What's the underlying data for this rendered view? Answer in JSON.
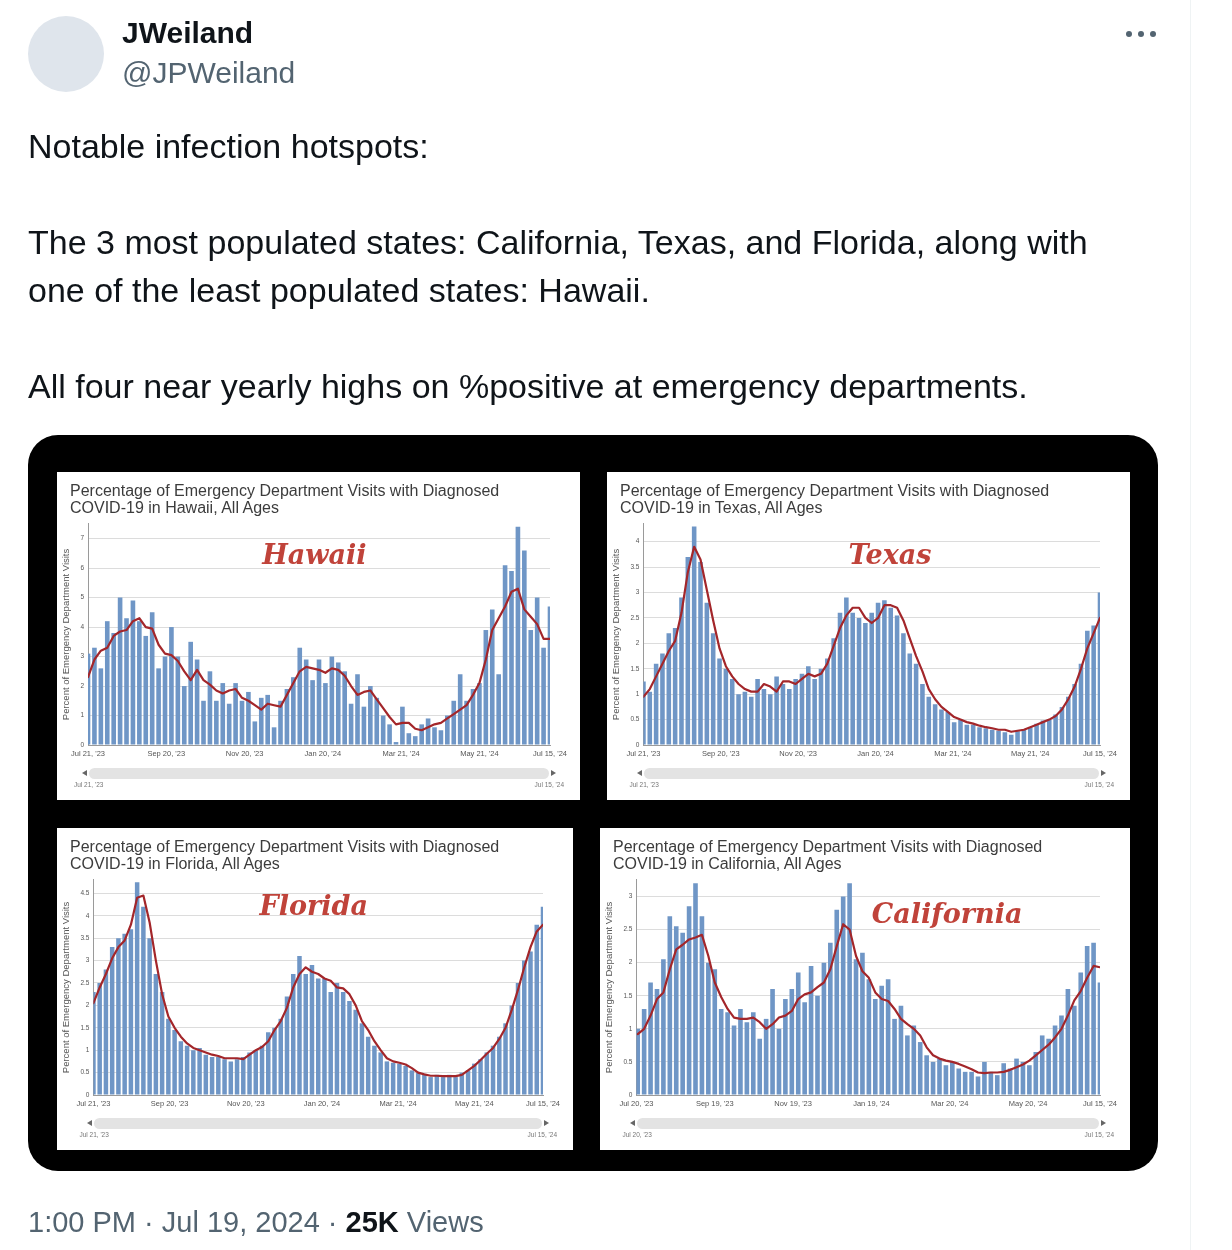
{
  "chart_data": [
    {
      "type": "other",
      "title": "JWeiland",
      "subtitle": "@JPWeiland",
      "annotations": [
        "Notable infection hotspots:",
        "The 3 most populated states: California, Texas, and Florida, along with one of the least populated states: Hawaii.",
        "All four near yearly highs on %positive at emergency departments."
      ]
    },
    {
      "type": "bar",
      "title": "Percentage of Emergency Department Visits with Diagnosed COVID-19 in Hawaii, All Ages",
      "ylabel": "Percent of Emergency Department Visits",
      "annotations": [
        "Hawaii",
        "Jul 21, '23",
        "Jul 15, '24"
      ],
      "x": [
        "2023-07-21",
        "2023-07-26",
        "2023-07-31",
        "2023-08-05",
        "2023-08-10",
        "2023-08-15",
        "2023-08-20",
        "2023-08-25",
        "2023-08-30",
        "2023-09-04",
        "2023-09-09",
        "2023-09-14",
        "2023-09-19",
        "2023-09-24",
        "2023-09-29",
        "2023-10-04",
        "2023-10-09",
        "2023-10-14",
        "2023-10-19",
        "2023-10-24",
        "2023-10-29",
        "2023-11-03",
        "2023-11-08",
        "2023-11-13",
        "2023-11-18",
        "2023-11-23",
        "2023-11-28",
        "2023-12-03",
        "2023-12-08",
        "2023-12-13",
        "2023-12-18",
        "2023-12-23",
        "2023-12-28",
        "2024-01-02",
        "2024-01-07",
        "2024-01-12",
        "2024-01-17",
        "2024-01-22",
        "2024-01-27",
        "2024-02-01",
        "2024-02-06",
        "2024-02-11",
        "2024-02-16",
        "2024-02-21",
        "2024-02-26",
        "2024-03-02",
        "2024-03-07",
        "2024-03-12",
        "2024-03-17",
        "2024-03-22",
        "2024-03-27",
        "2024-04-01",
        "2024-04-06",
        "2024-04-11",
        "2024-04-16",
        "2024-04-21",
        "2024-04-26",
        "2024-05-01",
        "2024-05-06",
        "2024-05-11",
        "2024-05-16",
        "2024-05-21",
        "2024-05-26",
        "2024-05-31",
        "2024-06-05",
        "2024-06-10",
        "2024-06-15",
        "2024-06-20",
        "2024-06-25",
        "2024-06-30",
        "2024-07-05",
        "2024-07-10",
        "2024-07-15"
      ],
      "series": [
        {
          "type": "bar",
          "color": "#6f96c6",
          "values": [
            3.1,
            3.3,
            2.6,
            4.2,
            3.8,
            5.0,
            4.3,
            4.9,
            4.2,
            3.7,
            4.5,
            2.6,
            3.0,
            4.0,
            3.0,
            2.0,
            3.5,
            2.9,
            1.5,
            2.5,
            1.5,
            2.1,
            1.4,
            2.1,
            1.5,
            1.8,
            0.8,
            1.6,
            1.7,
            0.6,
            1.5,
            1.9,
            2.3,
            3.3,
            2.9,
            2.2,
            2.9,
            2.1,
            3.0,
            2.8,
            2.5,
            1.4,
            2.4,
            1.3,
            2.0,
            1.6,
            1.0,
            0.7,
            0.1,
            1.3,
            0.4,
            0.3,
            0.7,
            0.9,
            0.6,
            0.5,
            1.0,
            1.5,
            2.4,
            1.5,
            1.9,
            2.1,
            3.9,
            4.6,
            2.4,
            6.1,
            5.9,
            7.4,
            6.6,
            3.9,
            5.0,
            3.3,
            4.7
          ]
        },
        {
          "type": "line",
          "color": "#a3262a",
          "values": [
            2.3,
            2.9,
            3.2,
            3.3,
            3.7,
            3.85,
            3.9,
            4.2,
            4.3,
            4.0,
            3.95,
            3.4,
            3.1,
            3.05,
            2.85,
            2.5,
            2.2,
            2.55,
            2.2,
            2.05,
            1.85,
            1.75,
            1.85,
            1.9,
            1.6,
            1.5,
            1.35,
            1.2,
            1.4,
            1.35,
            1.3,
            1.7,
            2.1,
            2.5,
            2.65,
            2.6,
            2.55,
            2.45,
            2.6,
            2.55,
            2.35,
            2.0,
            1.7,
            1.8,
            1.85,
            1.55,
            1.25,
            0.95,
            0.7,
            0.75,
            0.75,
            0.55,
            0.5,
            0.6,
            0.7,
            0.75,
            0.9,
            1.05,
            1.2,
            1.35,
            1.7,
            2.1,
            2.9,
            3.9,
            4.3,
            4.7,
            5.2,
            5.3,
            4.6,
            4.35,
            4.1,
            3.6,
            3.6
          ]
        }
      ],
      "xlim": [
        "2023-07-21",
        "2024-07-15"
      ],
      "xticks": [
        {
          "value": "2023-07-21",
          "label": "Jul 21, '23"
        },
        {
          "value": "2023-09-20",
          "label": "Sep 20, '23"
        },
        {
          "value": "2023-11-20",
          "label": "Nov 20, '23"
        },
        {
          "value": "2024-01-20",
          "label": "Jan 20, '24"
        },
        {
          "value": "2024-03-21",
          "label": "Mar 21, '24"
        },
        {
          "value": "2024-05-21",
          "label": "May 21, '24"
        },
        {
          "value": "2024-07-15",
          "label": "Jul 15, '24"
        }
      ],
      "ylim": [
        0,
        7.5
      ],
      "yticks": [
        0,
        1,
        2,
        3,
        4,
        5,
        6,
        7
      ],
      "grid": "y",
      "marker": "none",
      "line_style": "solid"
    },
    {
      "type": "bar",
      "title": "Percentage of Emergency Department Visits with Diagnosed COVID-19 in Texas, All Ages",
      "ylabel": "Percent of Emergency Department Visits",
      "annotations": [
        "Texas",
        "Jul 21, '23",
        "Jul 15, '24"
      ],
      "x": [
        "2023-07-21",
        "2023-07-26",
        "2023-07-31",
        "2023-08-05",
        "2023-08-10",
        "2023-08-15",
        "2023-08-20",
        "2023-08-25",
        "2023-08-30",
        "2023-09-04",
        "2023-09-09",
        "2023-09-14",
        "2023-09-19",
        "2023-09-24",
        "2023-09-29",
        "2023-10-04",
        "2023-10-09",
        "2023-10-14",
        "2023-10-19",
        "2023-10-24",
        "2023-10-29",
        "2023-11-03",
        "2023-11-08",
        "2023-11-13",
        "2023-11-18",
        "2023-11-23",
        "2023-11-28",
        "2023-12-03",
        "2023-12-08",
        "2023-12-13",
        "2023-12-18",
        "2023-12-23",
        "2023-12-28",
        "2024-01-02",
        "2024-01-07",
        "2024-01-12",
        "2024-01-17",
        "2024-01-22",
        "2024-01-27",
        "2024-02-01",
        "2024-02-06",
        "2024-02-11",
        "2024-02-16",
        "2024-02-21",
        "2024-02-26",
        "2024-03-02",
        "2024-03-07",
        "2024-03-12",
        "2024-03-17",
        "2024-03-22",
        "2024-03-27",
        "2024-04-01",
        "2024-04-06",
        "2024-04-11",
        "2024-04-16",
        "2024-04-21",
        "2024-04-26",
        "2024-05-01",
        "2024-05-06",
        "2024-05-11",
        "2024-05-16",
        "2024-05-21",
        "2024-05-26",
        "2024-05-31",
        "2024-06-05",
        "2024-06-10",
        "2024-06-15",
        "2024-06-20",
        "2024-06-25",
        "2024-06-30",
        "2024-07-05",
        "2024-07-10",
        "2024-07-15"
      ],
      "series": [
        {
          "type": "bar",
          "color": "#6f96c6",
          "values": [
            1.25,
            1.05,
            1.6,
            1.8,
            2.2,
            2.3,
            2.9,
            3.7,
            4.3,
            3.6,
            2.8,
            2.2,
            1.7,
            1.5,
            1.3,
            1.0,
            1.05,
            0.95,
            1.3,
            1.1,
            1.0,
            1.35,
            1.2,
            1.1,
            1.3,
            1.4,
            1.55,
            1.3,
            1.5,
            1.7,
            2.1,
            2.6,
            2.9,
            2.6,
            2.5,
            2.4,
            2.6,
            2.8,
            2.85,
            2.7,
            2.55,
            2.2,
            1.8,
            1.6,
            1.2,
            0.95,
            0.8,
            0.7,
            0.65,
            0.45,
            0.5,
            0.4,
            0.4,
            0.35,
            0.33,
            0.3,
            0.28,
            0.25,
            0.2,
            0.27,
            0.3,
            0.35,
            0.42,
            0.48,
            0.5,
            0.6,
            0.75,
            0.95,
            1.2,
            1.6,
            2.25,
            2.35,
            3.0
          ]
        },
        {
          "type": "line",
          "color": "#a3262a",
          "values": [
            0.95,
            1.1,
            1.35,
            1.6,
            1.85,
            2.05,
            2.6,
            3.4,
            3.9,
            3.65,
            3.05,
            2.45,
            1.9,
            1.55,
            1.35,
            1.2,
            1.1,
            1.05,
            1.05,
            1.2,
            1.15,
            1.05,
            1.25,
            1.25,
            1.2,
            1.3,
            1.4,
            1.35,
            1.4,
            1.6,
            1.95,
            2.3,
            2.55,
            2.7,
            2.7,
            2.5,
            2.4,
            2.5,
            2.75,
            2.75,
            2.7,
            2.45,
            2.1,
            1.75,
            1.45,
            1.1,
            0.9,
            0.75,
            0.65,
            0.55,
            0.5,
            0.45,
            0.42,
            0.38,
            0.35,
            0.33,
            0.3,
            0.3,
            0.26,
            0.28,
            0.3,
            0.35,
            0.4,
            0.45,
            0.5,
            0.57,
            0.7,
            0.9,
            1.15,
            1.5,
            1.9,
            2.2,
            2.5
          ]
        }
      ],
      "xlim": [
        "2023-07-21",
        "2024-07-15"
      ],
      "xticks": [
        {
          "value": "2023-07-21",
          "label": "Jul 21, '23"
        },
        {
          "value": "2023-09-20",
          "label": "Sep 20, '23"
        },
        {
          "value": "2023-11-20",
          "label": "Nov 20, '23"
        },
        {
          "value": "2024-01-20",
          "label": "Jan 20, '24"
        },
        {
          "value": "2024-03-21",
          "label": "Mar 21, '24"
        },
        {
          "value": "2024-05-21",
          "label": "May 21, '24"
        },
        {
          "value": "2024-07-15",
          "label": "Jul 15, '24"
        }
      ],
      "ylim": [
        0,
        4.35
      ],
      "yticks": [
        0,
        0.5,
        1,
        1.5,
        2,
        2.5,
        3,
        3.5,
        4
      ],
      "grid": "y",
      "marker": "none",
      "line_style": "solid"
    },
    {
      "type": "bar",
      "title": "Percentage of Emergency Department Visits with Diagnosed COVID-19 in Florida, All Ages",
      "ylabel": "Percent of Emergency Department Visits",
      "annotations": [
        "Florida",
        "Jul 21, '23",
        "Jul 15, '24"
      ],
      "x": [
        "2023-07-21",
        "2023-07-26",
        "2023-07-31",
        "2023-08-05",
        "2023-08-10",
        "2023-08-15",
        "2023-08-20",
        "2023-08-25",
        "2023-08-30",
        "2023-09-04",
        "2023-09-09",
        "2023-09-14",
        "2023-09-19",
        "2023-09-24",
        "2023-09-29",
        "2023-10-04",
        "2023-10-09",
        "2023-10-14",
        "2023-10-19",
        "2023-10-24",
        "2023-10-29",
        "2023-11-03",
        "2023-11-08",
        "2023-11-13",
        "2023-11-18",
        "2023-11-23",
        "2023-11-28",
        "2023-12-03",
        "2023-12-08",
        "2023-12-13",
        "2023-12-18",
        "2023-12-23",
        "2023-12-28",
        "2024-01-02",
        "2024-01-07",
        "2024-01-12",
        "2024-01-17",
        "2024-01-22",
        "2024-01-27",
        "2024-02-01",
        "2024-02-06",
        "2024-02-11",
        "2024-02-16",
        "2024-02-21",
        "2024-02-26",
        "2024-03-02",
        "2024-03-07",
        "2024-03-12",
        "2024-03-17",
        "2024-03-22",
        "2024-03-27",
        "2024-04-01",
        "2024-04-06",
        "2024-04-11",
        "2024-04-16",
        "2024-04-21",
        "2024-04-26",
        "2024-05-01",
        "2024-05-06",
        "2024-05-11",
        "2024-05-16",
        "2024-05-21",
        "2024-05-26",
        "2024-05-31",
        "2024-06-05",
        "2024-06-10",
        "2024-06-15",
        "2024-06-20",
        "2024-06-25",
        "2024-06-30",
        "2024-07-05",
        "2024-07-10",
        "2024-07-15"
      ],
      "series": [
        {
          "type": "bar",
          "color": "#6f96c6",
          "values": [
            2.3,
            2.5,
            2.8,
            3.3,
            3.5,
            3.6,
            3.7,
            4.75,
            4.2,
            3.5,
            2.7,
            2.3,
            1.7,
            1.45,
            1.2,
            1.1,
            1.0,
            1.05,
            0.9,
            0.85,
            0.85,
            0.8,
            0.75,
            0.8,
            0.85,
            0.95,
            1.0,
            1.1,
            1.4,
            1.5,
            1.7,
            2.2,
            2.7,
            3.1,
            2.7,
            2.9,
            2.6,
            2.6,
            2.3,
            2.5,
            2.3,
            2.1,
            1.9,
            1.6,
            1.3,
            1.1,
            0.95,
            0.75,
            0.72,
            0.7,
            0.65,
            0.55,
            0.5,
            0.45,
            0.4,
            0.45,
            0.4,
            0.45,
            0.4,
            0.5,
            0.55,
            0.7,
            0.8,
            0.95,
            1.1,
            1.3,
            1.6,
            2.0,
            2.5,
            3.0,
            3.2,
            3.8,
            4.2
          ]
        },
        {
          "type": "line",
          "color": "#a3262a",
          "values": [
            2.05,
            2.4,
            2.7,
            3.05,
            3.3,
            3.45,
            3.8,
            4.4,
            4.45,
            3.85,
            3.0,
            2.25,
            1.75,
            1.5,
            1.3,
            1.15,
            1.05,
            1.0,
            0.95,
            0.9,
            0.87,
            0.82,
            0.82,
            0.82,
            0.8,
            0.9,
            1.0,
            1.07,
            1.2,
            1.45,
            1.65,
            1.95,
            2.4,
            2.7,
            2.85,
            2.75,
            2.7,
            2.6,
            2.55,
            2.4,
            2.38,
            2.25,
            2.0,
            1.65,
            1.45,
            1.2,
            1.0,
            0.82,
            0.75,
            0.72,
            0.68,
            0.6,
            0.5,
            0.46,
            0.43,
            0.43,
            0.42,
            0.42,
            0.42,
            0.45,
            0.55,
            0.65,
            0.78,
            0.92,
            1.05,
            1.25,
            1.5,
            1.9,
            2.35,
            2.85,
            3.3,
            3.65,
            3.8
          ]
        }
      ],
      "xlim": [
        "2023-07-21",
        "2024-07-15"
      ],
      "xticks": [
        {
          "value": "2023-07-21",
          "label": "Jul 21, '23"
        },
        {
          "value": "2023-09-20",
          "label": "Sep 20, '23"
        },
        {
          "value": "2023-11-20",
          "label": "Nov 20, '23"
        },
        {
          "value": "2024-01-20",
          "label": "Jan 20, '24"
        },
        {
          "value": "2024-03-21",
          "label": "Mar 21, '24"
        },
        {
          "value": "2024-05-21",
          "label": "May 21, '24"
        },
        {
          "value": "2024-07-15",
          "label": "Jul 15, '24"
        }
      ],
      "ylim": [
        0,
        4.8
      ],
      "yticks": [
        0,
        0.5,
        1,
        1.5,
        2,
        2.5,
        3,
        3.5,
        4,
        4.5
      ],
      "grid": "y",
      "marker": "none",
      "line_style": "solid"
    },
    {
      "type": "bar",
      "title": "Percentage of Emergency Department Visits with Diagnosed COVID-19 in California, All Ages",
      "ylabel": "Percent of Emergency Department Visits",
      "annotations": [
        "California",
        "Jul 20, '23",
        "Jul 15, '24"
      ],
      "x": [
        "2023-07-21",
        "2023-07-26",
        "2023-07-31",
        "2023-08-05",
        "2023-08-10",
        "2023-08-15",
        "2023-08-20",
        "2023-08-25",
        "2023-08-30",
        "2023-09-04",
        "2023-09-09",
        "2023-09-14",
        "2023-09-19",
        "2023-09-24",
        "2023-09-29",
        "2023-10-04",
        "2023-10-09",
        "2023-10-14",
        "2023-10-19",
        "2023-10-24",
        "2023-10-29",
        "2023-11-03",
        "2023-11-08",
        "2023-11-13",
        "2023-11-18",
        "2023-11-23",
        "2023-11-28",
        "2023-12-03",
        "2023-12-08",
        "2023-12-13",
        "2023-12-18",
        "2023-12-23",
        "2023-12-28",
        "2024-01-02",
        "2024-01-07",
        "2024-01-12",
        "2024-01-17",
        "2024-01-22",
        "2024-01-27",
        "2024-02-01",
        "2024-02-06",
        "2024-02-11",
        "2024-02-16",
        "2024-02-21",
        "2024-02-26",
        "2024-03-02",
        "2024-03-07",
        "2024-03-12",
        "2024-03-17",
        "2024-03-22",
        "2024-03-27",
        "2024-04-01",
        "2024-04-06",
        "2024-04-11",
        "2024-04-16",
        "2024-04-21",
        "2024-04-26",
        "2024-05-01",
        "2024-05-06",
        "2024-05-11",
        "2024-05-16",
        "2024-05-21",
        "2024-05-26",
        "2024-05-31",
        "2024-06-05",
        "2024-06-10",
        "2024-06-15",
        "2024-06-20",
        "2024-06-25",
        "2024-06-30",
        "2024-07-05",
        "2024-07-10",
        "2024-07-15"
      ],
      "series": [
        {
          "type": "bar",
          "color": "#6f96c6",
          "values": [
            1.0,
            1.3,
            1.7,
            1.6,
            2.05,
            2.7,
            2.55,
            2.45,
            2.85,
            3.2,
            2.7,
            2.0,
            1.9,
            1.3,
            1.25,
            1.05,
            1.3,
            1.1,
            1.25,
            0.85,
            1.15,
            1.6,
            1.0,
            1.45,
            1.6,
            1.85,
            1.4,
            1.95,
            1.5,
            2.0,
            2.3,
            2.8,
            3.0,
            3.2,
            2.05,
            2.15,
            1.75,
            1.45,
            1.65,
            1.75,
            1.15,
            1.35,
            0.9,
            1.05,
            0.8,
            0.6,
            0.5,
            0.55,
            0.45,
            0.5,
            0.4,
            0.35,
            0.35,
            0.28,
            0.5,
            0.35,
            0.3,
            0.48,
            0.4,
            0.55,
            0.5,
            0.45,
            0.65,
            0.9,
            0.85,
            1.05,
            1.2,
            1.6,
            1.35,
            1.85,
            2.25,
            2.3,
            1.7
          ]
        },
        {
          "type": "line",
          "color": "#a3262a",
          "values": [
            0.92,
            1.0,
            1.2,
            1.45,
            1.55,
            1.9,
            2.2,
            2.27,
            2.35,
            2.38,
            2.42,
            2.1,
            1.7,
            1.48,
            1.3,
            1.17,
            1.15,
            1.15,
            1.17,
            1.1,
            1.0,
            1.07,
            1.17,
            1.2,
            1.27,
            1.45,
            1.52,
            1.55,
            1.63,
            1.7,
            1.9,
            2.25,
            2.58,
            2.5,
            2.1,
            1.87,
            1.77,
            1.55,
            1.45,
            1.42,
            1.3,
            1.15,
            1.07,
            1.0,
            0.9,
            0.72,
            0.6,
            0.55,
            0.52,
            0.5,
            0.47,
            0.43,
            0.39,
            0.34,
            0.33,
            0.34,
            0.34,
            0.35,
            0.38,
            0.42,
            0.46,
            0.52,
            0.6,
            0.68,
            0.76,
            0.87,
            1.0,
            1.2,
            1.43,
            1.57,
            1.77,
            1.95,
            1.93
          ]
        }
      ],
      "xlim": [
        "2023-07-20",
        "2024-07-15"
      ],
      "xticks": [
        {
          "value": "2023-07-20",
          "label": "Jul 20, '23"
        },
        {
          "value": "2023-09-19",
          "label": "Sep 19, '23"
        },
        {
          "value": "2023-11-19",
          "label": "Nov 19, '23"
        },
        {
          "value": "2024-01-19",
          "label": "Jan 19, '24"
        },
        {
          "value": "2024-03-20",
          "label": "Mar 20, '24"
        },
        {
          "value": "2024-05-20",
          "label": "May 20, '24"
        },
        {
          "value": "2024-07-15",
          "label": "Jul 15, '24"
        }
      ],
      "ylim": [
        0,
        3.25
      ],
      "yticks": [
        0,
        0.5,
        1,
        1.5,
        2,
        2.5,
        3
      ],
      "grid": "y",
      "marker": "none",
      "line_style": "solid"
    },
    {
      "type": "other",
      "annotations": [
        "1:00 PM · Jul 19, 2024 ·",
        "25K",
        "Views"
      ]
    }
  ]
}
